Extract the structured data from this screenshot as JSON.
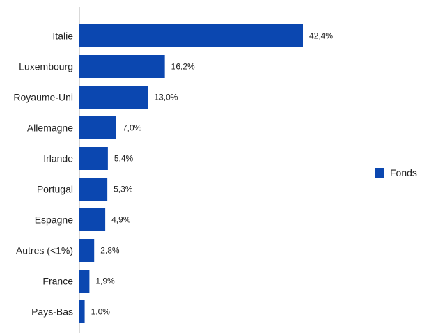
{
  "chart_data": {
    "type": "bar",
    "orientation": "horizontal",
    "categories": [
      "Italie",
      "Luxembourg",
      "Royaume-Uni",
      "Allemagne",
      "Irlande",
      "Portugal",
      "Espagne",
      "Autres (<1%)",
      "France",
      "Pays-Bas"
    ],
    "series": [
      {
        "name": "Fonds",
        "color": "#0B47B0",
        "values": [
          42.4,
          16.2,
          13.0,
          7.0,
          5.4,
          5.3,
          4.9,
          2.8,
          1.9,
          1.0
        ],
        "labels": [
          "42,4%",
          "16,2%",
          "13,0%",
          "7,0%",
          "5,4%",
          "5,3%",
          "4,9%",
          "2,8%",
          "1,9%",
          "1,0%"
        ]
      }
    ],
    "xlim": [
      0,
      42.4
    ],
    "grid": false,
    "legend_position": "right"
  }
}
